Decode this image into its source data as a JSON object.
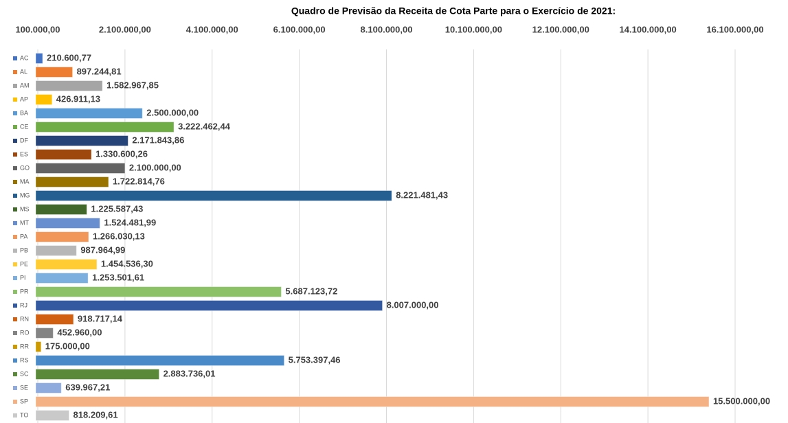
{
  "chart_data": {
    "type": "barh",
    "title": "Quadro de Previsão da Receita de Cota Parte para o Exercício de 2021:",
    "categories": [
      "AC",
      "AL",
      "AM",
      "AP",
      "BA",
      "CE",
      "DF",
      "ES",
      "GO",
      "MA",
      "MG",
      "MS",
      "MT",
      "PA",
      "PB",
      "PE",
      "PI",
      "PR",
      "RJ",
      "RN",
      "RO",
      "RR",
      "RS",
      "SC",
      "SE",
      "SP",
      "TO"
    ],
    "values": [
      210600.77,
      897244.81,
      1582967.85,
      426911.13,
      2500000,
      3222462.44,
      2171843.86,
      1330600.26,
      2100000,
      1722814.76,
      8221481.43,
      1225587.43,
      1524481.99,
      1266030.13,
      987964.99,
      1454536.3,
      1253501.61,
      5687123.72,
      8007000,
      918717.14,
      452960,
      175000,
      5753397.46,
      2883736.01,
      639967.21,
      15500000,
      818209.61
    ],
    "value_labels": [
      "210.600,77",
      "897.244,81",
      "1.582.967,85",
      "426.911,13",
      "2.500.000,00",
      "3.222.462,44",
      "2.171.843,86",
      "1.330.600,26",
      "2.100.000,00",
      "1.722.814,76",
      "8.221.481,43",
      "1.225.587,43",
      "1.524.481,99",
      "1.266.030,13",
      "987.964,99",
      "1.454.536,30",
      "1.253.501,61",
      "5.687.123,72",
      "8.007.000,00",
      "918.717,14",
      "452.960,00",
      "175.000,00",
      "5.753.397,46",
      "2.883.736,01",
      "639.967,21",
      "15.500.000,00",
      "818.209,61"
    ],
    "colors": [
      "#4472c4",
      "#ed7d31",
      "#a5a5a5",
      "#ffc000",
      "#5b9bd5",
      "#70ad47",
      "#264478",
      "#9e480e",
      "#636363",
      "#997300",
      "#255e91",
      "#43682b",
      "#698ed0",
      "#f1975a",
      "#b7b7b7",
      "#ffcd33",
      "#7cafdd",
      "#8cc168",
      "#335aa1",
      "#d26012",
      "#848484",
      "#cc9a00",
      "#4a8ac8",
      "#5a8a39",
      "#8faadc",
      "#f4b183",
      "#c9c9c9"
    ],
    "xlim": [
      100000,
      16100000
    ],
    "xticks": [
      {
        "value": 100000,
        "label": "100.000,00"
      },
      {
        "value": 2100000,
        "label": "2.100.000,00"
      },
      {
        "value": 4100000,
        "label": "4.100.000,00"
      },
      {
        "value": 6100000,
        "label": "6.100.000,00"
      },
      {
        "value": 8100000,
        "label": "8.100.000,00"
      },
      {
        "value": 10100000,
        "label": "10.100.000,00"
      },
      {
        "value": 12100000,
        "label": "12.100.000,00"
      },
      {
        "value": 14100000,
        "label": "14.100.000,00"
      },
      {
        "value": 16100000,
        "label": "16.100.000,00"
      }
    ],
    "grid": true
  }
}
